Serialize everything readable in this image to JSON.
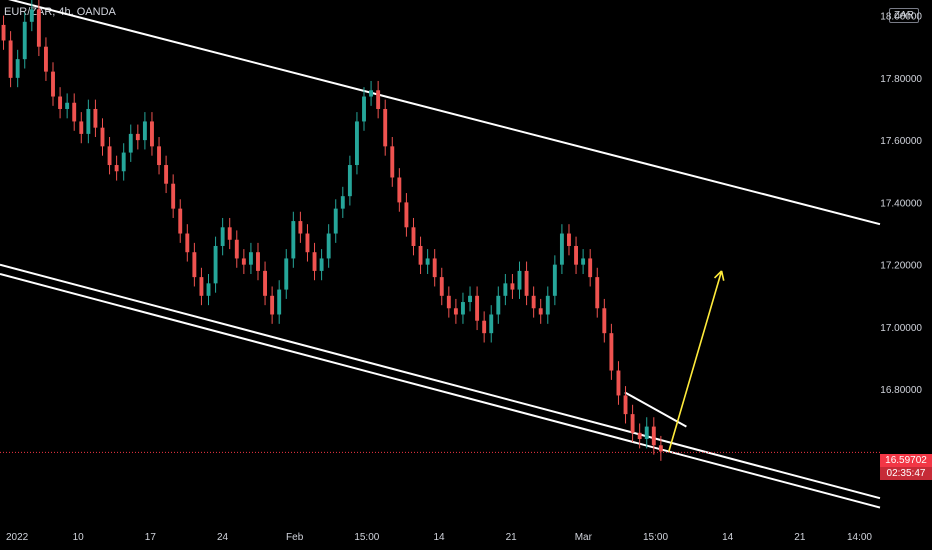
{
  "header": {
    "symbol_label": "EUR/ZAR, 4h, OANDA",
    "currency_badge": "ZAR"
  },
  "price_tag": {
    "last_price": "16.59702",
    "countdown": "02:35:47"
  },
  "colors": {
    "background": "#000000",
    "up": "#26a69a",
    "down": "#ef5350",
    "trendline": "#ffffff",
    "arrow": "#ffeb3b",
    "last_price_line": "#f23645"
  },
  "chart_data": {
    "type": "candlestick",
    "y_axis": {
      "ticks": [
        "18.00000",
        "17.80000",
        "17.60000",
        "17.40000",
        "17.20000",
        "17.00000",
        "16.80000"
      ],
      "tick_values": [
        18.0,
        17.8,
        17.6,
        17.4,
        17.2,
        17.0,
        16.8
      ],
      "ylim": [
        16.38,
        18.05
      ],
      "position": "right"
    },
    "x_axis": {
      "ticks": [
        "2022",
        "10",
        "17",
        "24",
        "Feb",
        "15:00",
        "14",
        "21",
        "Mar",
        "15:00",
        "14",
        "21",
        "14:00"
      ]
    },
    "last_price": 16.59702,
    "grid": false,
    "trendlines": [
      {
        "name": "channel-upper",
        "from": [
          0,
          18.06
        ],
        "to": [
          1,
          17.33
        ]
      },
      {
        "name": "channel-lower-1",
        "from": [
          0,
          17.2
        ],
        "to": [
          1,
          16.45
        ]
      },
      {
        "name": "channel-lower-2",
        "from": [
          0,
          17.17
        ],
        "to": [
          1,
          16.42
        ]
      },
      {
        "name": "wedge-top",
        "from": [
          0.71,
          16.79
        ],
        "to": [
          0.78,
          16.68
        ]
      }
    ],
    "projection_arrow": {
      "from": [
        0.76,
        16.6
      ],
      "to": [
        0.82,
        17.18
      ]
    },
    "closes": [
      17.92,
      17.8,
      17.86,
      17.98,
      18.02,
      17.9,
      17.82,
      17.74,
      17.7,
      17.72,
      17.66,
      17.62,
      17.7,
      17.64,
      17.58,
      17.52,
      17.5,
      17.56,
      17.62,
      17.6,
      17.66,
      17.58,
      17.52,
      17.46,
      17.38,
      17.3,
      17.24,
      17.16,
      17.1,
      17.14,
      17.26,
      17.32,
      17.28,
      17.22,
      17.2,
      17.24,
      17.18,
      17.1,
      17.04,
      17.12,
      17.22,
      17.34,
      17.3,
      17.24,
      17.18,
      17.22,
      17.3,
      17.38,
      17.42,
      17.52,
      17.66,
      17.74,
      17.76,
      17.7,
      17.58,
      17.48,
      17.4,
      17.32,
      17.26,
      17.2,
      17.22,
      17.16,
      17.1,
      17.06,
      17.04,
      17.08,
      17.1,
      17.02,
      16.98,
      17.04,
      17.1,
      17.14,
      17.12,
      17.18,
      17.1,
      17.06,
      17.04,
      17.1,
      17.2,
      17.3,
      17.26,
      17.2,
      17.22,
      17.16,
      17.06,
      16.98,
      16.86,
      16.78,
      16.72,
      16.66,
      16.64,
      16.68,
      16.62,
      16.6
    ]
  }
}
